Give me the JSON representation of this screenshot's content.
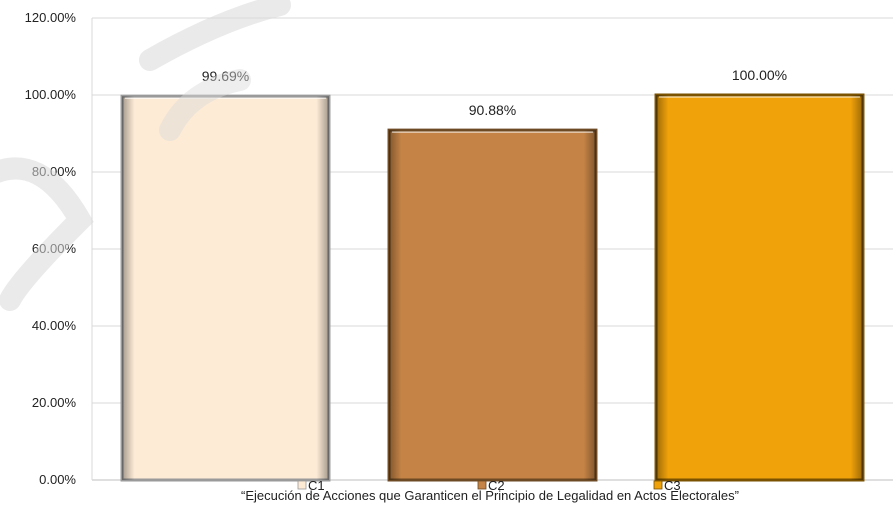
{
  "chart_data": {
    "type": "bar",
    "xlabel": "“Ejecución de Acciones que Garanticen el Principio de Legalidad en Actos Electorales”",
    "ylabel": "",
    "ylim": [
      0,
      120
    ],
    "yticks": [
      "0.00%",
      "20.00%",
      "40.00%",
      "60.00%",
      "80.00%",
      "100.00%",
      "120.00%"
    ],
    "grid": true,
    "legend_position": "bottom",
    "series": [
      {
        "name": "C1",
        "value": 99.69,
        "label": "99.69%",
        "color": "#FDEBD6",
        "edge": "#9a9a9a"
      },
      {
        "name": "C2",
        "value": 90.88,
        "label": "90.88%",
        "color": "#C58445",
        "edge": "#6e4a24"
      },
      {
        "name": "C3",
        "value": 100.0,
        "label": "100.00%",
        "color": "#F0A20A",
        "edge": "#7a5200"
      }
    ]
  }
}
